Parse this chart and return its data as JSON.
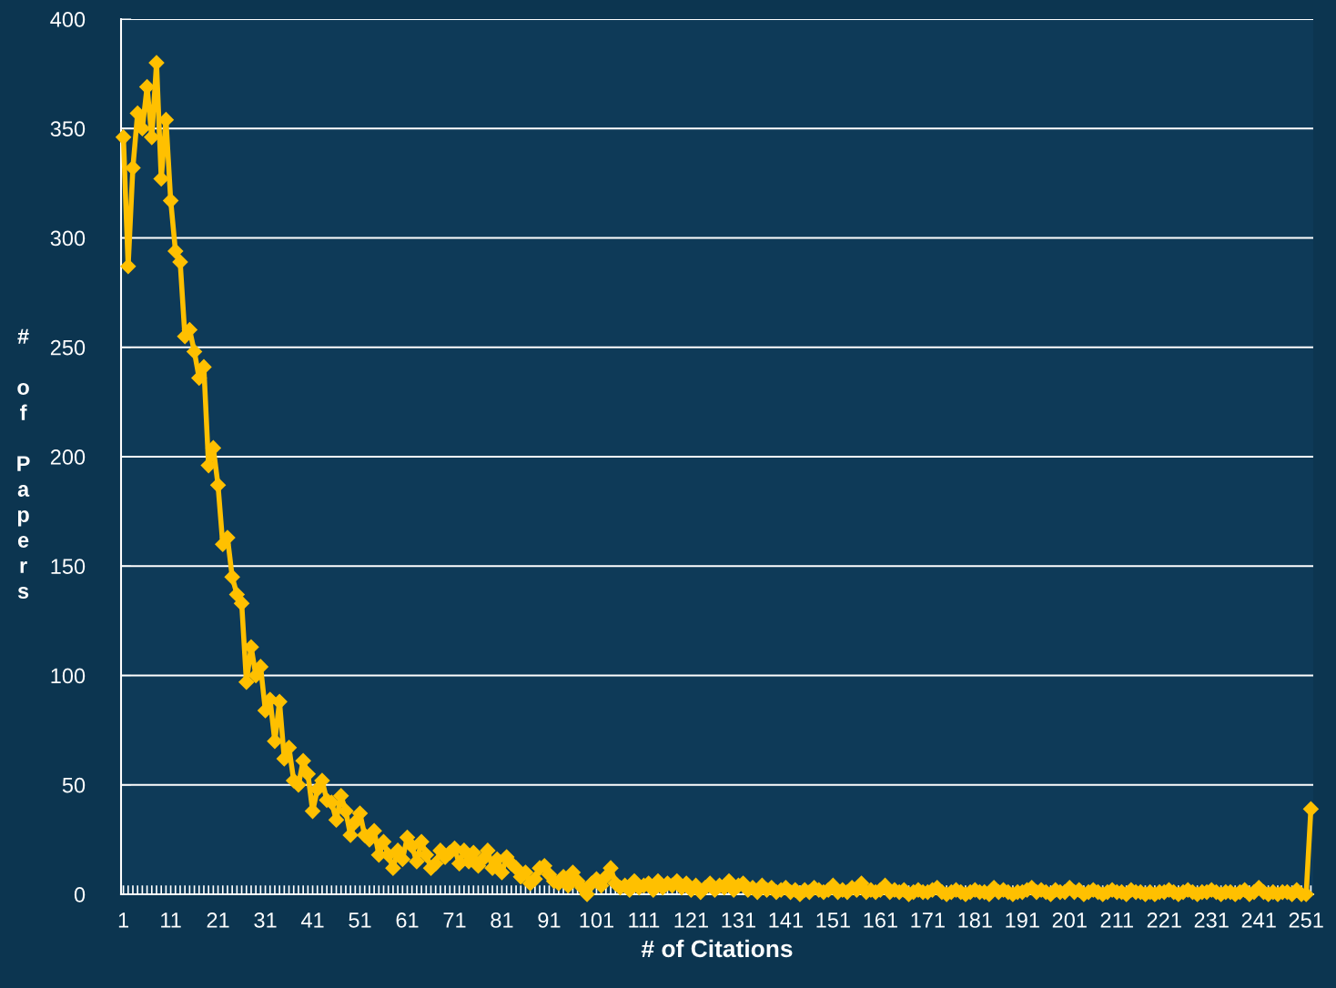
{
  "chart_data": {
    "type": "line",
    "xlabel": "# of Citations",
    "ylabel": "# of Papers",
    "categories": [
      "1",
      null,
      null,
      null,
      null,
      null,
      null,
      null,
      null,
      null,
      "11",
      null,
      null,
      null,
      null,
      null,
      null,
      null,
      null,
      null,
      "21",
      null,
      null,
      null,
      null,
      null,
      null,
      null,
      null,
      null,
      "31",
      null,
      null,
      null,
      null,
      null,
      null,
      null,
      null,
      null,
      "41",
      null,
      null,
      null,
      null,
      null,
      null,
      null,
      null,
      null,
      "51",
      null,
      null,
      null,
      null,
      null,
      null,
      null,
      null,
      null,
      "61",
      null,
      null,
      null,
      null,
      null,
      null,
      null,
      null,
      null,
      "71",
      null,
      null,
      null,
      null,
      null,
      null,
      null,
      null,
      null,
      "81",
      null,
      null,
      null,
      null,
      null,
      null,
      null,
      null,
      null,
      "91",
      null,
      null,
      null,
      null,
      null,
      null,
      null,
      null,
      null,
      "101",
      null,
      null,
      null,
      null,
      null,
      null,
      null,
      null,
      null,
      "111",
      null,
      null,
      null,
      null,
      null,
      null,
      null,
      null,
      null,
      "121",
      null,
      null,
      null,
      null,
      null,
      null,
      null,
      null,
      null,
      "131",
      null,
      null,
      null,
      null,
      null,
      null,
      null,
      null,
      null,
      "141",
      null,
      null,
      null,
      null,
      null,
      null,
      null,
      null,
      null,
      "151",
      null,
      null,
      null,
      null,
      null,
      null,
      null,
      null,
      null,
      "161",
      null,
      null,
      null,
      null,
      null,
      null,
      null,
      null,
      null,
      "171",
      null,
      null,
      null,
      null,
      null,
      null,
      null,
      null,
      null,
      "181",
      null,
      null,
      null,
      null,
      null,
      null,
      null,
      null,
      null,
      "191",
      null,
      null,
      null,
      null,
      null,
      null,
      null,
      null,
      null,
      "201",
      null,
      null,
      null,
      null,
      null,
      null,
      null,
      null,
      null,
      "211",
      null,
      null,
      null,
      null,
      null,
      null,
      null,
      null,
      null,
      "221",
      null,
      null,
      null,
      null,
      null,
      null,
      null,
      null,
      null,
      "231",
      null,
      null,
      null,
      null,
      null,
      null,
      null,
      null,
      null,
      "241",
      null,
      null,
      null,
      null,
      null,
      null,
      null,
      null,
      null,
      "251",
      null
    ],
    "series": [
      {
        "color": "#ffc000",
        "values": [
          346,
          287,
          332,
          357,
          350,
          369,
          346,
          380,
          327,
          354,
          317,
          294,
          289,
          255,
          258,
          248,
          236,
          241,
          196,
          204,
          187,
          160,
          163,
          145,
          137,
          133,
          97,
          113,
          100,
          104,
          84,
          89,
          70,
          88,
          62,
          67,
          52,
          50,
          61,
          55,
          38,
          48,
          52,
          43,
          42,
          34,
          45,
          38,
          27,
          33,
          37,
          27,
          25,
          29,
          18,
          24,
          18,
          12,
          20,
          16,
          26,
          22,
          15,
          24,
          18,
          12,
          14,
          20,
          17,
          19,
          21,
          14,
          20,
          15,
          19,
          13,
          16,
          20,
          12,
          16,
          10,
          17,
          14,
          12,
          8,
          10,
          5,
          7,
          12,
          13,
          9,
          6,
          5,
          8,
          4,
          10,
          6,
          3,
          0,
          5,
          7,
          4,
          8,
          12,
          5,
          3,
          4,
          2,
          6,
          3,
          4,
          5,
          2,
          6,
          3,
          5,
          4,
          6,
          3,
          5,
          2,
          4,
          1,
          3,
          5,
          2,
          4,
          3,
          6,
          2,
          4,
          5,
          2,
          3,
          1,
          4,
          2,
          3,
          1,
          2,
          3,
          1,
          2,
          0,
          2,
          1,
          3,
          2,
          1,
          2,
          4,
          1,
          2,
          1,
          3,
          2,
          5,
          1,
          2,
          1,
          2,
          4,
          1,
          2,
          1,
          2,
          0,
          1,
          2,
          1,
          1,
          2,
          3,
          1,
          0,
          1,
          2,
          1,
          0,
          1,
          2,
          1,
          1,
          0,
          3,
          1,
          2,
          1,
          0,
          1,
          1,
          2,
          3,
          1,
          2,
          1,
          0,
          2,
          1,
          1,
          3,
          1,
          2,
          0,
          1,
          2,
          1,
          0,
          1,
          2,
          1,
          1,
          0,
          2,
          1,
          1,
          0,
          1,
          0,
          1,
          1,
          2,
          1,
          0,
          1,
          2,
          1,
          0,
          1,
          1,
          2,
          1,
          0,
          1,
          1,
          0,
          1,
          2,
          0,
          1,
          3,
          1,
          0,
          1,
          0,
          1,
          1,
          0,
          2,
          0,
          0,
          39
        ]
      }
    ],
    "ylim": [
      0,
      400
    ],
    "yticks": [
      0,
      50,
      100,
      150,
      200,
      250,
      300,
      350,
      400
    ],
    "grid": "y",
    "marker": "diamond",
    "line_style": "solid",
    "legend": false
  }
}
